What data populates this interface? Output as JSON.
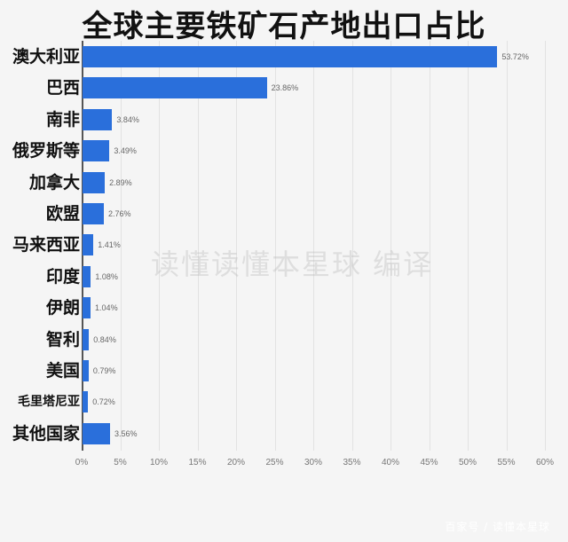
{
  "title": "全球主要铁矿石产地出口占比",
  "watermark_center": "读懂读懂本星球  编译",
  "watermark_corner": "百家号 / 读懂本星球",
  "colors": {
    "bar": "#2a6fdb",
    "background": "#f5f5f5",
    "grid": "#e2e2e2"
  },
  "chart_data": {
    "type": "bar",
    "orientation": "horizontal",
    "title": "全球主要铁矿石产地出口占比",
    "xlabel": "",
    "ylabel": "",
    "xlim": [
      0,
      60
    ],
    "grid": true,
    "categories": [
      "澳大利亚",
      "巴西",
      "南非",
      "俄罗斯等",
      "加拿大",
      "欧盟",
      "马来西亚",
      "印度",
      "伊朗",
      "智利",
      "美国",
      "毛里塔尼亚",
      "其他国家"
    ],
    "values": [
      53.72,
      23.86,
      3.84,
      3.49,
      2.89,
      2.76,
      1.41,
      1.08,
      1.04,
      0.84,
      0.79,
      0.72,
      3.56
    ],
    "value_labels": [
      "53.72%",
      "23.86%",
      "3.84%",
      "3.49%",
      "2.89%",
      "2.76%",
      "1.41%",
      "1.08%",
      "1.04%",
      "0.84%",
      "0.79%",
      "0.72%",
      "3.56%"
    ],
    "x_ticks": [
      "0%",
      "5%",
      "10%",
      "15%",
      "20%",
      "25%",
      "30%",
      "35%",
      "40%",
      "45%",
      "50%",
      "55%",
      "60%"
    ],
    "x_tick_values": [
      0,
      5,
      10,
      15,
      20,
      25,
      30,
      35,
      40,
      45,
      50,
      55,
      60
    ]
  }
}
